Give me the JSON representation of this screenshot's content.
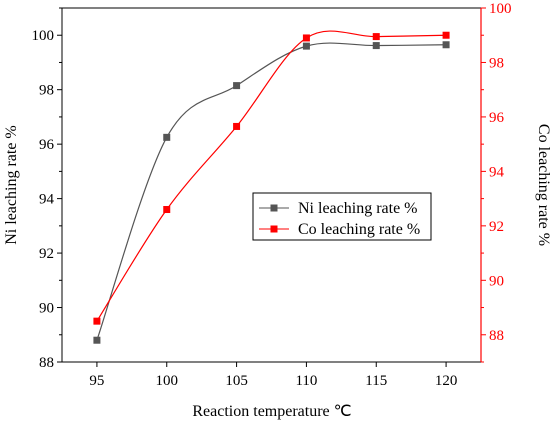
{
  "chart_data": {
    "type": "line",
    "x": [
      95,
      100,
      105,
      110,
      115,
      120
    ],
    "xlabel": "Reaction temperature ℃",
    "x_ticks": [
      "95",
      "100",
      "105",
      "110",
      "115",
      "120"
    ],
    "xlim": [
      92.5,
      122.5
    ],
    "axes": {
      "left": {
        "label": "Ni leaching rate %",
        "ylim": [
          88,
          101
        ],
        "ticks": [
          "88",
          "90",
          "92",
          "94",
          "96",
          "98",
          "100"
        ],
        "color": "#000000"
      },
      "right": {
        "label": "Co leaching rate %",
        "ylim": [
          87,
          100
        ],
        "ticks": [
          "88",
          "90",
          "92",
          "94",
          "96",
          "98",
          "100"
        ],
        "color": "#ff0000"
      }
    },
    "series": [
      {
        "name": "Ni leaching rate %",
        "axis": "left",
        "color": "#555555",
        "marker": "square",
        "values": [
          88.8,
          96.25,
          98.15,
          99.6,
          99.62,
          99.65
        ]
      },
      {
        "name": "Co leaching rate %",
        "axis": "right",
        "color": "#ff0000",
        "marker": "square",
        "values": [
          88.5,
          92.6,
          95.65,
          98.9,
          98.95,
          99.0
        ]
      }
    ],
    "legend": {
      "position": "center-right"
    },
    "grid": false
  }
}
